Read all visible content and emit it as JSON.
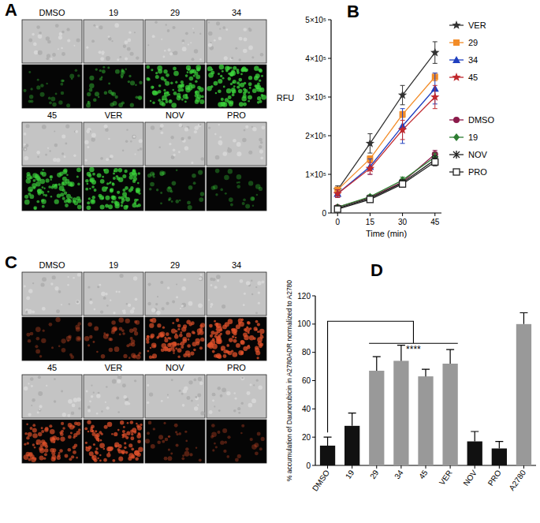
{
  "images": [
    {
      "panel": "A",
      "labels": [
        "DMSO",
        "19",
        "29",
        "34",
        "45",
        "VER",
        "NOV",
        "PRO"
      ],
      "color": "#3bd43b"
    },
    {
      "panel": "C",
      "labels": [
        "DMSO",
        "19",
        "29",
        "34",
        "45",
        "VER",
        "NOV",
        "PRO"
      ],
      "color": "#e0502a"
    }
  ],
  "chart_data": [
    {
      "type": "line",
      "title": "B",
      "x_label": "Time (min)",
      "y_label": "RFU",
      "x": [
        0,
        15,
        30,
        45
      ],
      "xlim": [
        -3,
        48
      ],
      "xticks": [
        0,
        15,
        30,
        45
      ],
      "ylim": [
        0,
        500000
      ],
      "yticks": [
        0,
        {
          "value": 100000,
          "label": "1×10⁵"
        },
        {
          "value": 200000,
          "label": "2×10⁵"
        },
        {
          "value": 300000,
          "label": "3×10⁵"
        },
        {
          "value": 400000,
          "label": "4×10⁵"
        },
        {
          "value": 500000,
          "label": "5×10⁵"
        }
      ],
      "grid": false,
      "legend": "right",
      "series": [
        {
          "name": "VER",
          "color": "#333333",
          "marker": "star",
          "values": [
            60000,
            180000,
            305000,
            415000
          ],
          "errors": [
            10000,
            25000,
            25000,
            28000
          ]
        },
        {
          "name": "29",
          "color": "#f28c28",
          "marker": "square",
          "values": [
            60000,
            140000,
            255000,
            352000
          ],
          "errors": [
            6000,
            8000,
            8000,
            10000
          ]
        },
        {
          "name": "34",
          "color": "#1f3fbf",
          "marker": "triangle",
          "values": [
            50000,
            120000,
            225000,
            322000
          ],
          "errors": [
            10000,
            20000,
            45000,
            40000
          ]
        },
        {
          "name": "45",
          "color": "#c0282d",
          "marker": "star",
          "values": [
            50000,
            115000,
            215000,
            300000
          ],
          "errors": [
            10000,
            15000,
            25000,
            30000
          ]
        },
        {
          "name": "DMSO",
          "color": "#8b1a4a",
          "marker": "circle",
          "values": [
            15000,
            40000,
            80000,
            152000
          ],
          "errors": [
            3000,
            5000,
            8000,
            10000
          ]
        },
        {
          "name": "19",
          "color": "#2e7d32",
          "marker": "diamond",
          "values": [
            15000,
            42000,
            85000,
            145000
          ],
          "errors": [
            3000,
            5000,
            8000,
            10000
          ]
        },
        {
          "name": "NOV",
          "color": "#222222",
          "marker": "asterisk",
          "values": [
            12000,
            38000,
            78000,
            138000
          ],
          "errors": [
            3000,
            5000,
            8000,
            10000
          ]
        },
        {
          "name": "PRO",
          "color": "#222222",
          "marker": "square-open",
          "values": [
            10000,
            35000,
            75000,
            132000
          ],
          "errors": [
            3000,
            5000,
            8000,
            10000
          ]
        }
      ]
    },
    {
      "type": "bar",
      "title": "D",
      "y_label": "% accumulation of Daunorubicin in A2780ADR normalized to A2780",
      "categories": [
        "DMSO",
        "19",
        "29",
        "34",
        "45",
        "VER",
        "NOV",
        "PRO",
        "A2780"
      ],
      "values": [
        14,
        28,
        67,
        74,
        63,
        72,
        17,
        12,
        100
      ],
      "errors": [
        6,
        9,
        10,
        11,
        5,
        10,
        7,
        5,
        8
      ],
      "colors": [
        "#111111",
        "#111111",
        "#999999",
        "#999999",
        "#999999",
        "#999999",
        "#111111",
        "#111111",
        "#999999"
      ],
      "ylim": [
        0,
        120
      ],
      "yticks": [
        0,
        20,
        40,
        60,
        80,
        100,
        120
      ],
      "grid": false,
      "annotations": [
        "****"
      ]
    }
  ]
}
